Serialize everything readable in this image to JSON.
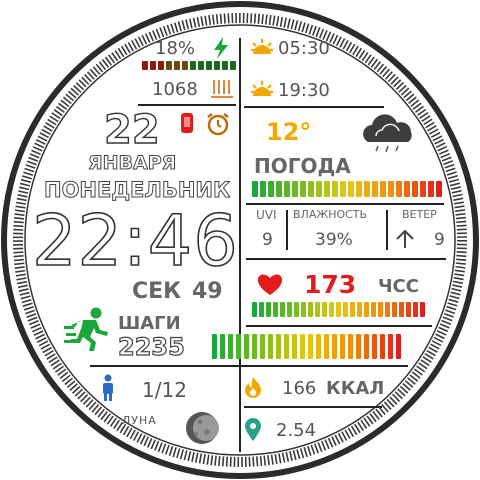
{
  "battery": {
    "percent_text": "18%",
    "level": 0.18
  },
  "pressure": {
    "value": "1068"
  },
  "sun": {
    "sunrise": "05:30",
    "sunset": "19:30"
  },
  "date": {
    "day": "22",
    "month": "ЯНВАРЯ",
    "weekday": "ПОНЕДЕЛЬНИК"
  },
  "time": {
    "hhmm": "22:46",
    "sec_label": "СЕК",
    "sec": "49"
  },
  "weather": {
    "temp": "12°",
    "label": "ПОГОДА",
    "uvi_label": "UVI",
    "uvi": "9",
    "humidity_label": "ВЛАЖНОСТЬ",
    "humidity": "39%",
    "wind_label": "ВЕТЕР",
    "wind": "9"
  },
  "heart": {
    "value": "173",
    "label": "ЧСС"
  },
  "steps": {
    "label": "ШАГИ",
    "value": "2235"
  },
  "moon": {
    "phase": "1/12",
    "label": "ЛУНА"
  },
  "calories": {
    "value": "166",
    "label": "ККАЛ"
  },
  "distance": {
    "value": "2.54"
  },
  "colors": {
    "red": "#e01c1c",
    "green": "#1aa83a",
    "yellow": "#f0a800",
    "dark": "#222222"
  }
}
